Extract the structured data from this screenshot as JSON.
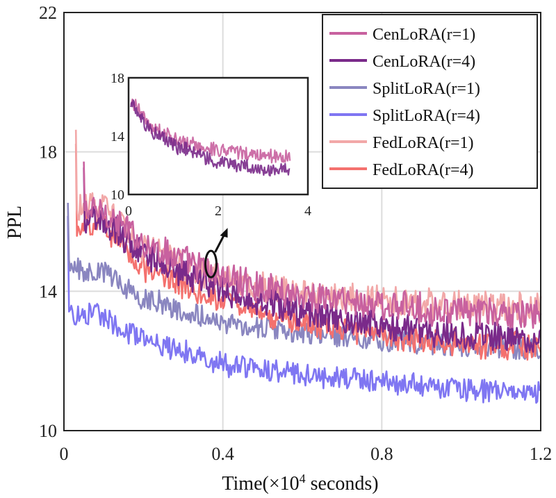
{
  "chart_data": {
    "type": "line",
    "xlabel": "Time(×10",
    "xlabel_sup": "4",
    "xlabel_tail": " seconds)",
    "ylabel": "PPL",
    "xlim": [
      0,
      1.2
    ],
    "ylim": [
      10,
      22
    ],
    "xticks": [
      0,
      0.4,
      0.8,
      1.2
    ],
    "xtick_labels": [
      "0",
      "0.4",
      "0.8",
      "1.2"
    ],
    "yticks": [
      10,
      14,
      18,
      22
    ],
    "ytick_labels": [
      "10",
      "14",
      "18",
      "22"
    ],
    "grid": true,
    "legend_position": "top-right",
    "series": [
      {
        "name": "CenLoRA(r=1)",
        "color": "#c8619f",
        "x_start": 0.05,
        "x_end": 1.2,
        "y_start": 17.6,
        "y_end": 13.3,
        "decay": 4.0,
        "noise": 0.9,
        "anchors": [
          [
            0.1,
            16.3
          ],
          [
            0.2,
            15.4
          ],
          [
            0.4,
            14.4
          ],
          [
            0.6,
            13.9
          ],
          [
            0.8,
            13.6
          ],
          [
            1.0,
            13.4
          ],
          [
            1.2,
            13.3
          ]
        ]
      },
      {
        "name": "CenLoRA(r=4)",
        "color": "#7a2a8a",
        "x_start": 0.05,
        "x_end": 1.2,
        "y_start": 17.4,
        "y_end": 12.6,
        "decay": 4.0,
        "noise": 0.9,
        "anchors": [
          [
            0.1,
            16.0
          ],
          [
            0.2,
            15.1
          ],
          [
            0.4,
            14.0
          ],
          [
            0.6,
            13.4
          ],
          [
            0.8,
            13.0
          ],
          [
            1.0,
            12.8
          ],
          [
            1.2,
            12.6
          ]
        ]
      },
      {
        "name": "SplitLoRA(r=1)",
        "color": "#8a86c0",
        "x_start": 0.01,
        "x_end": 1.2,
        "y_start": 16.4,
        "y_end": 12.3,
        "decay": 5.0,
        "noise": 0.7,
        "anchors": [
          [
            0.1,
            14.6
          ],
          [
            0.2,
            13.8
          ],
          [
            0.4,
            13.1
          ],
          [
            0.6,
            12.8
          ],
          [
            0.8,
            12.6
          ],
          [
            1.0,
            12.4
          ],
          [
            1.2,
            12.3
          ]
        ]
      },
      {
        "name": "SplitLoRA(r=4)",
        "color": "#7f76f2",
        "x_start": 0.01,
        "x_end": 1.2,
        "y_start": 16.0,
        "y_end": 11.1,
        "decay": 5.0,
        "noise": 0.7,
        "anchors": [
          [
            0.1,
            13.3
          ],
          [
            0.2,
            12.6
          ],
          [
            0.4,
            11.9
          ],
          [
            0.6,
            11.6
          ],
          [
            0.8,
            11.4
          ],
          [
            1.0,
            11.2
          ],
          [
            1.2,
            11.1
          ]
        ]
      },
      {
        "name": "FedLoRA(r=1)",
        "color": "#f2a8a8",
        "x_start": 0.03,
        "x_end": 1.2,
        "y_start": 18.4,
        "y_end": 13.5,
        "decay": 3.5,
        "noise": 0.9,
        "anchors": [
          [
            0.1,
            16.4
          ],
          [
            0.2,
            15.3
          ],
          [
            0.4,
            14.3
          ],
          [
            0.6,
            13.9
          ],
          [
            0.8,
            13.7
          ],
          [
            1.0,
            13.6
          ],
          [
            1.2,
            13.5
          ]
        ]
      },
      {
        "name": "FedLoRA(r=4)",
        "color": "#f4716e",
        "x_start": 0.03,
        "x_end": 1.2,
        "y_start": 18.0,
        "y_end": 12.4,
        "decay": 3.5,
        "noise": 0.8,
        "anchors": [
          [
            0.1,
            15.9
          ],
          [
            0.2,
            14.7
          ],
          [
            0.4,
            13.7
          ],
          [
            0.6,
            13.1
          ],
          [
            0.8,
            12.7
          ],
          [
            1.0,
            12.5
          ],
          [
            1.2,
            12.4
          ]
        ]
      }
    ],
    "inset": {
      "xlim": [
        0,
        4
      ],
      "ylim": [
        10,
        18
      ],
      "xticks": [
        0,
        2,
        4
      ],
      "xtick_labels": [
        "0",
        "2",
        "4"
      ],
      "yticks": [
        10,
        14,
        18
      ],
      "ytick_labels": [
        "10",
        "14",
        "18"
      ],
      "series": [
        {
          "name": "CenLoRA(r=1)",
          "color": "#c8619f",
          "x_start": 0.05,
          "x_end": 3.6,
          "anchors": [
            [
              0.05,
              16.5
            ],
            [
              0.5,
              14.6
            ],
            [
              1.0,
              13.8
            ],
            [
              2.0,
              13.0
            ],
            [
              3.0,
              12.7
            ],
            [
              3.6,
              12.6
            ]
          ]
        },
        {
          "name": "CenLoRA(r=4)",
          "color": "#7a2a8a",
          "x_start": 0.05,
          "x_end": 3.6,
          "anchors": [
            [
              0.05,
              16.3
            ],
            [
              0.5,
              14.3
            ],
            [
              1.0,
              13.4
            ],
            [
              2.0,
              12.2
            ],
            [
              3.0,
              11.8
            ],
            [
              3.6,
              11.6
            ]
          ]
        }
      ],
      "annotation_point": {
        "x": 0.37,
        "y": 14.9
      }
    }
  }
}
